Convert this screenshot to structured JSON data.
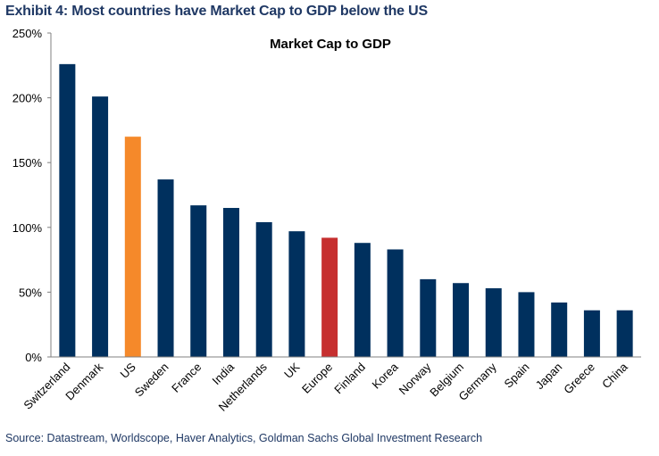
{
  "exhibit_title": "Exhibit 4: Most countries have Market Cap to GDP below the US",
  "source": "Source: Datastream, Worldscope, Haver Analytics, Goldman Sachs Global Investment Research",
  "colors": {
    "default_bar": "#00305e",
    "us_bar": "#f5892a",
    "europe_bar": "#c62f2f"
  },
  "chart_data": {
    "type": "bar",
    "title": "Market Cap to GDP",
    "xlabel": "",
    "ylabel": "",
    "ylim": [
      0,
      250
    ],
    "y_ticks": [
      "0%",
      "50%",
      "100%",
      "150%",
      "200%",
      "250%"
    ],
    "y_tick_values": [
      0,
      50,
      100,
      150,
      200,
      250
    ],
    "grid": false,
    "legend": "none",
    "categories": [
      "Switzerland",
      "Denmark",
      "US",
      "Sweden",
      "France",
      "India",
      "Netherlands",
      "UK",
      "Europe",
      "Finland",
      "Korea",
      "Norway",
      "Belgium",
      "Germany",
      "Spain",
      "Japan",
      "Greece",
      "China"
    ],
    "values": [
      226,
      201,
      170,
      137,
      117,
      115,
      104,
      97,
      92,
      88,
      83,
      60,
      57,
      53,
      50,
      42,
      36,
      36
    ],
    "bar_colors": [
      "#00305e",
      "#00305e",
      "#f5892a",
      "#00305e",
      "#00305e",
      "#00305e",
      "#00305e",
      "#00305e",
      "#c62f2f",
      "#00305e",
      "#00305e",
      "#00305e",
      "#00305e",
      "#00305e",
      "#00305e",
      "#00305e",
      "#00305e",
      "#00305e"
    ]
  }
}
